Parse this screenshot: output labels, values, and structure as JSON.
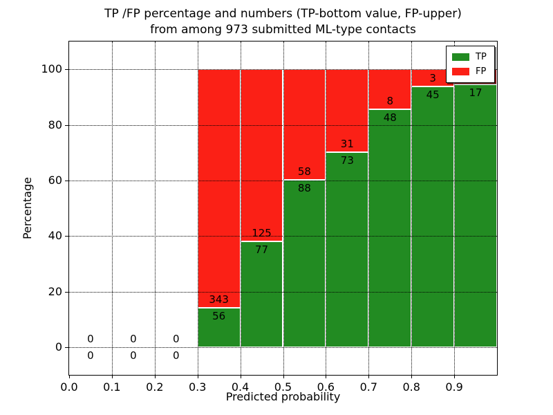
{
  "figure": {
    "title_line1": "TP /FP percentage and numbers (TP-bottom value, FP-upper)",
    "title_line2": "from among 973 submitted ML-type contacts",
    "background_color": "#ffffff"
  },
  "chart_data": {
    "type": "bar",
    "stacked": true,
    "units": "percent of bin total",
    "title": "TP /FP percentage and numbers (TP-bottom value, FP-upper)\nfrom among 973 submitted ML-type contacts",
    "xlabel": "Predicted probability",
    "ylabel": "Percentage",
    "total_contacts": 973,
    "xlim": [
      0.0,
      1.0
    ],
    "ylim": [
      -10,
      110
    ],
    "xticks": [
      0.0,
      0.1,
      0.2,
      0.3,
      0.4,
      0.5,
      0.6,
      0.7,
      0.8,
      0.9
    ],
    "xtick_labels": [
      "0.0",
      "0.1",
      "0.2",
      "0.3",
      "0.4",
      "0.5",
      "0.6",
      "0.7",
      "0.8",
      "0.9"
    ],
    "yticks": [
      0,
      20,
      40,
      60,
      80,
      100
    ],
    "ytick_labels": [
      "0",
      "20",
      "40",
      "60",
      "80",
      "100"
    ],
    "grid_style": "dotted",
    "bar_edge_color": "#ffffff",
    "colors": {
      "tp": "#228B22",
      "fp": "#FB2016"
    },
    "legend": {
      "position": "upper-right",
      "entries": [
        {
          "label": "TP",
          "color": "#228B22"
        },
        {
          "label": "FP",
          "color": "#FB2016"
        }
      ]
    },
    "bins": [
      {
        "x0": 0.0,
        "x1": 0.1,
        "tp": 0,
        "fp": 0,
        "tp_label": "0",
        "fp_label": "0"
      },
      {
        "x0": 0.1,
        "x1": 0.2,
        "tp": 0,
        "fp": 0,
        "tp_label": "0",
        "fp_label": "0"
      },
      {
        "x0": 0.2,
        "x1": 0.3,
        "tp": 0,
        "fp": 0,
        "tp_label": "0",
        "fp_label": "0"
      },
      {
        "x0": 0.3,
        "x1": 0.4,
        "tp": 56,
        "fp": 343,
        "tp_label": "56",
        "fp_label": "343"
      },
      {
        "x0": 0.4,
        "x1": 0.5,
        "tp": 77,
        "fp": 125,
        "tp_label": "77",
        "fp_label": "125"
      },
      {
        "x0": 0.5,
        "x1": 0.6,
        "tp": 88,
        "fp": 58,
        "tp_label": "88",
        "fp_label": "58"
      },
      {
        "x0": 0.6,
        "x1": 0.7,
        "tp": 73,
        "fp": 31,
        "tp_label": "73",
        "fp_label": "31"
      },
      {
        "x0": 0.7,
        "x1": 0.8,
        "tp": 48,
        "fp": 8,
        "tp_label": "48",
        "fp_label": "8"
      },
      {
        "x0": 0.8,
        "x1": 0.9,
        "tp": 45,
        "fp": 3,
        "tp_label": "45",
        "fp_label": "3"
      },
      {
        "x0": 0.9,
        "x1": 1.0,
        "tp": 17,
        "fp": 1,
        "tp_label": "17",
        "fp_label": "",
        "note": "FP count label hidden behind legend"
      }
    ],
    "tp_percent_by_bin": [
      0,
      0,
      0,
      14.0,
      38.1,
      60.3,
      70.2,
      85.7,
      93.8,
      94.4
    ]
  }
}
